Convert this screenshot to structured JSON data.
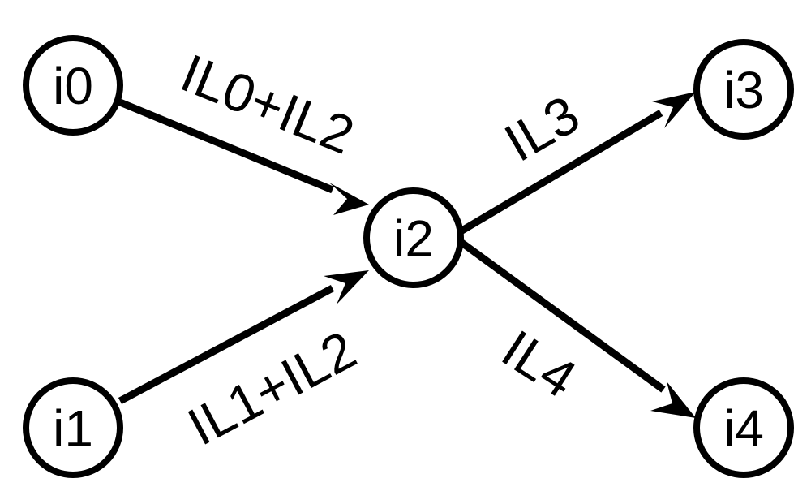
{
  "diagram": {
    "nodes": [
      {
        "id": "i0",
        "label": "i0"
      },
      {
        "id": "i1",
        "label": "i1"
      },
      {
        "id": "i2",
        "label": "i2"
      },
      {
        "id": "i3",
        "label": "i3"
      },
      {
        "id": "i4",
        "label": "i4"
      }
    ],
    "edges": [
      {
        "from": "i0",
        "to": "i2",
        "label": "IL0+IL2"
      },
      {
        "from": "i1",
        "to": "i2",
        "label": "IL1+IL2"
      },
      {
        "from": "i2",
        "to": "i3",
        "label": "IL3"
      },
      {
        "from": "i2",
        "to": "i4",
        "label": "IL4"
      }
    ],
    "colors": {
      "stroke": "#000000",
      "background": "#ffffff"
    }
  }
}
